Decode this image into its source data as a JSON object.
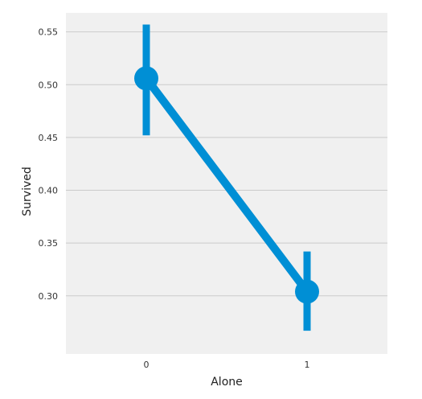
{
  "chart_data": {
    "type": "line",
    "title": "",
    "xlabel": "Alone",
    "ylabel": "Survived",
    "categories": [
      "0",
      "1"
    ],
    "series": [
      {
        "values": [
          0.506,
          0.304
        ],
        "ci_low": [
          0.452,
          0.267
        ],
        "ci_high": [
          0.557,
          0.342
        ]
      }
    ],
    "ylim": [
      0.245,
      0.568
    ],
    "yticks": [
      "0.30",
      "0.35",
      "0.40",
      "0.45",
      "0.50",
      "0.55"
    ],
    "ytick_values": [
      0.3,
      0.35,
      0.4,
      0.45,
      0.5,
      0.55
    ],
    "grid": true,
    "colors": {
      "series": "#008fd5",
      "plot_background": "#f0f0f0",
      "grid": "#cbcbcb"
    }
  }
}
